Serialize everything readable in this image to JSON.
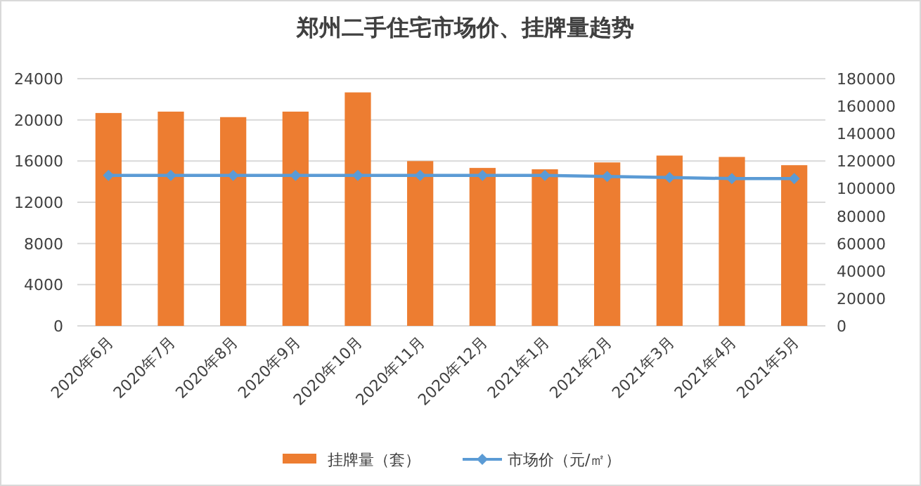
{
  "chart_data": {
    "type": "bar",
    "title": "郑州二手住宅市场价、挂牌量趋势",
    "categories": [
      "2020年6月",
      "2020年7月",
      "2020年8月",
      "2020年9月",
      "2020年10月",
      "2020年11月",
      "2020年12月",
      "2021年1月",
      "2021年2月",
      "2021年3月",
      "2021年4月",
      "2021年5月"
    ],
    "series": [
      {
        "name": "挂牌量（套）",
        "axis": "y2",
        "color": "#ed7d31",
        "values": [
          155000,
          156000,
          152000,
          156000,
          170000,
          120000,
          115000,
          114000,
          119000,
          124000,
          123000,
          117000
        ]
      },
      {
        "name": "市场价（元/㎡）",
        "type": "line",
        "color": "#5b9bd5",
        "marker": "diamond",
        "values": [
          14600,
          14600,
          14600,
          14600,
          14600,
          14600,
          14600,
          14600,
          14500,
          14400,
          14300,
          14300
        ]
      }
    ],
    "ylim": [
      0,
      24000
    ],
    "yticks": [
      0,
      4000,
      8000,
      12000,
      16000,
      20000,
      24000
    ],
    "y2lim": [
      0,
      180000
    ],
    "y2ticks": [
      0,
      20000,
      40000,
      60000,
      80000,
      100000,
      120000,
      140000,
      160000,
      180000
    ],
    "grid": "y",
    "legend": "bottom"
  }
}
